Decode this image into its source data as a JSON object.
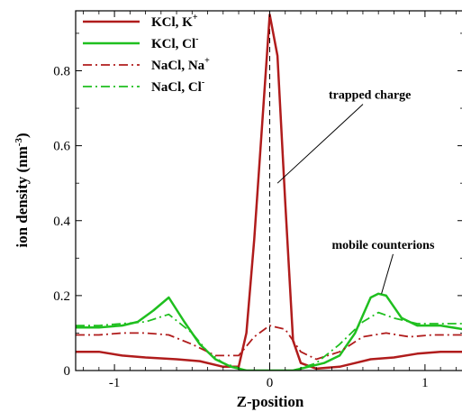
{
  "chart_data": {
    "type": "line",
    "title": "",
    "xlabel": "Z-position",
    "ylabel": "ion density (nm",
    "ylabel_sup": "-3",
    "ylabel_close": ")",
    "xlim": [
      -1.25,
      1.25
    ],
    "ylim": [
      0,
      0.96
    ],
    "xticks": [
      -1,
      0,
      1
    ],
    "xtick_labels": [
      "-1",
      "0",
      "1"
    ],
    "yticks": [
      0,
      0.2,
      0.4,
      0.6,
      0.8
    ],
    "ytick_labels": [
      "0",
      "0.2",
      "0.4",
      "0.6",
      "0.8"
    ],
    "grid": false,
    "legend_position": "top-left",
    "center_line_x": 0,
    "series": [
      {
        "name": "KCl, K",
        "name_sup": "+",
        "color": "#b01c1c",
        "style": "solid",
        "points": [
          [
            -1.25,
            0.05
          ],
          [
            -1.1,
            0.05
          ],
          [
            -0.95,
            0.04
          ],
          [
            -0.8,
            0.035
          ],
          [
            -0.6,
            0.03
          ],
          [
            -0.45,
            0.025
          ],
          [
            -0.3,
            0.01
          ],
          [
            -0.2,
            0.01
          ],
          [
            -0.15,
            0.1
          ],
          [
            -0.1,
            0.35
          ],
          [
            -0.05,
            0.65
          ],
          [
            0,
            0.95
          ],
          [
            0.05,
            0.84
          ],
          [
            0.1,
            0.45
          ],
          [
            0.15,
            0.08
          ],
          [
            0.2,
            0.02
          ],
          [
            0.3,
            0.005
          ],
          [
            0.45,
            0.01
          ],
          [
            0.55,
            0.02
          ],
          [
            0.65,
            0.03
          ],
          [
            0.8,
            0.035
          ],
          [
            0.95,
            0.045
          ],
          [
            1.1,
            0.05
          ],
          [
            1.25,
            0.05
          ]
        ]
      },
      {
        "name": "KCl, Cl",
        "name_sup": "-",
        "color": "#1fbf1f",
        "style": "solid",
        "points": [
          [
            -1.25,
            0.115
          ],
          [
            -1.1,
            0.115
          ],
          [
            -0.95,
            0.12
          ],
          [
            -0.85,
            0.13
          ],
          [
            -0.75,
            0.16
          ],
          [
            -0.65,
            0.195
          ],
          [
            -0.55,
            0.13
          ],
          [
            -0.45,
            0.07
          ],
          [
            -0.35,
            0.03
          ],
          [
            -0.25,
            0.01
          ],
          [
            -0.15,
            0.0
          ],
          [
            0.15,
            0.0
          ],
          [
            0.25,
            0.01
          ],
          [
            0.35,
            0.02
          ],
          [
            0.45,
            0.04
          ],
          [
            0.55,
            0.1
          ],
          [
            0.65,
            0.195
          ],
          [
            0.7,
            0.205
          ],
          [
            0.75,
            0.2
          ],
          [
            0.85,
            0.14
          ],
          [
            0.95,
            0.12
          ],
          [
            1.1,
            0.12
          ],
          [
            1.25,
            0.11
          ]
        ]
      },
      {
        "name": "NaCl, Na",
        "name_sup": "+",
        "color": "#b01c1c",
        "style": "dashdot",
        "points": [
          [
            -1.25,
            0.095
          ],
          [
            -1.1,
            0.095
          ],
          [
            -0.95,
            0.1
          ],
          [
            -0.8,
            0.1
          ],
          [
            -0.65,
            0.095
          ],
          [
            -0.5,
            0.07
          ],
          [
            -0.35,
            0.04
          ],
          [
            -0.2,
            0.04
          ],
          [
            -0.1,
            0.09
          ],
          [
            0,
            0.12
          ],
          [
            0.1,
            0.11
          ],
          [
            0.2,
            0.05
          ],
          [
            0.3,
            0.03
          ],
          [
            0.45,
            0.05
          ],
          [
            0.6,
            0.09
          ],
          [
            0.75,
            0.1
          ],
          [
            0.9,
            0.09
          ],
          [
            1.05,
            0.095
          ],
          [
            1.25,
            0.095
          ]
        ]
      },
      {
        "name": "NaCl, Cl",
        "name_sup": "-",
        "color": "#1fbf1f",
        "style": "dashdot",
        "points": [
          [
            -1.25,
            0.12
          ],
          [
            -1.1,
            0.12
          ],
          [
            -0.95,
            0.125
          ],
          [
            -0.8,
            0.13
          ],
          [
            -0.65,
            0.15
          ],
          [
            -0.5,
            0.1
          ],
          [
            -0.4,
            0.05
          ],
          [
            -0.3,
            0.02
          ],
          [
            -0.15,
            0.0
          ],
          [
            0.15,
            0.0
          ],
          [
            0.3,
            0.02
          ],
          [
            0.45,
            0.07
          ],
          [
            0.6,
            0.13
          ],
          [
            0.7,
            0.155
          ],
          [
            0.8,
            0.14
          ],
          [
            0.95,
            0.125
          ],
          [
            1.1,
            0.125
          ],
          [
            1.25,
            0.125
          ]
        ]
      }
    ],
    "annotations": [
      {
        "text": "trapped charge",
        "x": 0.38,
        "y": 0.725,
        "arrow_to": [
          0.05,
          0.5
        ]
      },
      {
        "text": "mobile counterions",
        "x": 0.4,
        "y": 0.325,
        "arrow_to": [
          0.72,
          0.205
        ]
      }
    ]
  }
}
